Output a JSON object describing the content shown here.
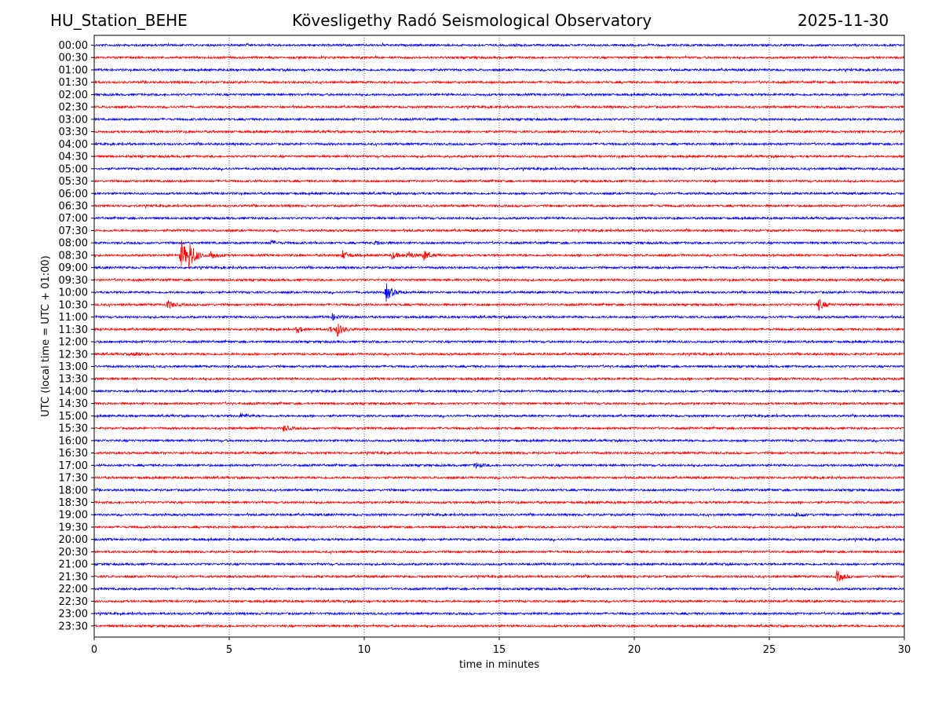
{
  "header": {
    "station": "HU_Station_BEHE",
    "observatory": "Kövesligethy Radó Seismological Observatory",
    "date": "2025-11-30"
  },
  "chart_data": {
    "type": "line",
    "title": "Kövesligethy Radó Seismological Observatory",
    "xlabel": "time in minutes",
    "ylabel": "UTC (local time = UTC + 01:00)",
    "xlim": [
      0,
      30
    ],
    "xticks": [
      "0",
      "5",
      "10",
      "15",
      "20",
      "25",
      "30"
    ],
    "xtick_values": [
      0,
      5,
      10,
      15,
      20,
      25,
      30
    ],
    "grid": "vertical dotted lines at x ticks",
    "row_labels": [
      "00:00",
      "00:30",
      "01:00",
      "01:30",
      "02:00",
      "02:30",
      "03:00",
      "03:30",
      "04:00",
      "04:30",
      "05:00",
      "05:30",
      "06:00",
      "06:30",
      "07:00",
      "07:30",
      "08:00",
      "08:30",
      "09:00",
      "09:30",
      "10:00",
      "10:30",
      "11:00",
      "11:30",
      "12:00",
      "12:30",
      "13:00",
      "13:30",
      "14:00",
      "14:30",
      "15:00",
      "15:30",
      "16:00",
      "16:30",
      "17:00",
      "17:30",
      "18:00",
      "18:30",
      "19:00",
      "19:30",
      "20:00",
      "20:30",
      "21:00",
      "21:30",
      "22:00",
      "22:30",
      "23:00",
      "23:30"
    ],
    "colors": [
      "#0000ff",
      "#ff0000"
    ],
    "events": [
      {
        "row": "08:00",
        "minute": 6.5,
        "amp": 3
      },
      {
        "row": "08:00",
        "minute": 10.4,
        "amp": 3
      },
      {
        "row": "08:30",
        "minute": 3.2,
        "amp": 22
      },
      {
        "row": "08:30",
        "minute": 3.5,
        "amp": 17
      },
      {
        "row": "08:30",
        "minute": 4.3,
        "amp": 6
      },
      {
        "row": "08:30",
        "minute": 9.2,
        "amp": 5
      },
      {
        "row": "08:30",
        "minute": 11.0,
        "amp": 5
      },
      {
        "row": "08:30",
        "minute": 11.6,
        "amp": 5
      },
      {
        "row": "08:30",
        "minute": 12.2,
        "amp": 6
      },
      {
        "row": "10:00",
        "minute": 10.8,
        "amp": 12
      },
      {
        "row": "10:30",
        "minute": 2.7,
        "amp": 6
      },
      {
        "row": "10:30",
        "minute": 26.8,
        "amp": 8
      },
      {
        "row": "11:00",
        "minute": 8.8,
        "amp": 4
      },
      {
        "row": "11:30",
        "minute": 7.5,
        "amp": 4
      },
      {
        "row": "11:30",
        "minute": 8.7,
        "amp": 4
      },
      {
        "row": "11:30",
        "minute": 9.0,
        "amp": 8
      },
      {
        "row": "12:30",
        "minute": 1.5,
        "amp": 3
      },
      {
        "row": "15:00",
        "minute": 5.4,
        "amp": 3
      },
      {
        "row": "15:30",
        "minute": 7.0,
        "amp": 4
      },
      {
        "row": "17:00",
        "minute": 14.1,
        "amp": 4
      },
      {
        "row": "19:00",
        "minute": 26.0,
        "amp": 3
      },
      {
        "row": "21:30",
        "minute": 27.5,
        "amp": 8
      }
    ]
  }
}
